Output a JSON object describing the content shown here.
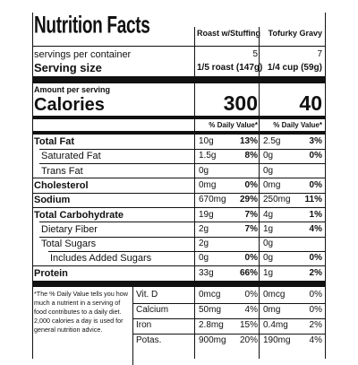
{
  "header": {
    "title": "Nutrition Facts",
    "products": [
      "Roast w/Stuffing",
      "Tofurky Gravy"
    ]
  },
  "servings": {
    "label": "servings per container",
    "values": [
      5,
      7
    ]
  },
  "serving_size": {
    "label": "Serving size",
    "values": [
      "1/5 roast (147g)",
      "1/4 cup (59g)"
    ]
  },
  "calories": {
    "heading": "Amount per serving",
    "label": "Calories",
    "values": [
      300,
      40
    ]
  },
  "daily_value_heading": [
    "% Daily Value*",
    "% Daily Value*"
  ],
  "nutrients": [
    {
      "label": "Total Fat",
      "values": [
        [
          "10g",
          "13%"
        ],
        [
          "2.5g",
          "3%"
        ]
      ]
    },
    {
      "label": "Saturated Fat",
      "values": [
        [
          "1.5g",
          "8%"
        ],
        [
          "0g",
          "0%"
        ]
      ]
    },
    {
      "label": "Trans Fat",
      "values": [
        [
          "0g"
        ],
        [
          "0g"
        ]
      ]
    },
    {
      "label": "Cholesterol",
      "values": [
        [
          "0mg",
          "0%"
        ],
        [
          "0mg",
          "0%"
        ]
      ]
    },
    {
      "label": "Sodium",
      "values": [
        [
          "670mg",
          "29%"
        ],
        [
          "250mg",
          "11%"
        ]
      ]
    },
    {
      "label": "Total Carbohydrate",
      "values": [
        [
          "19g",
          "7%"
        ],
        [
          "4g",
          "1%"
        ]
      ]
    },
    {
      "label": "Dietary Fiber",
      "values": [
        [
          "2g",
          "7%"
        ],
        [
          "1g",
          "4%"
        ]
      ]
    },
    {
      "label": "Total Sugars",
      "values": [
        [
          "2g"
        ],
        [
          "0g"
        ]
      ]
    },
    {
      "label": "Includes Added Sugars",
      "values": [
        [
          "0g",
          "0%"
        ],
        [
          "0g",
          "0%"
        ]
      ]
    },
    {
      "label": "Protein",
      "values": [
        [
          "33g",
          "66%"
        ],
        [
          "1g",
          "2%"
        ]
      ]
    }
  ],
  "footnote": "*The % Daily Value tells you how much a nutrient in a serving of food contributes to a daily diet. 2,000 calories a day is used for general nutrition advice.",
  "vitamins": [
    {
      "label": "Vit. D",
      "values": [
        [
          "0mcg",
          "0%"
        ],
        [
          "0mcg",
          "0%"
        ]
      ]
    },
    {
      "label": "Calcium",
      "values": [
        [
          "50mg",
          "4%"
        ],
        [
          "0mg",
          "0%"
        ]
      ]
    },
    {
      "label": "Iron",
      "values": [
        [
          "2.8mg",
          "15%"
        ],
        [
          "0.4mg",
          "2%"
        ]
      ]
    },
    {
      "label": "Potas.",
      "values": [
        [
          "900mg",
          "20%"
        ],
        [
          "190mg",
          "4%"
        ]
      ]
    }
  ]
}
